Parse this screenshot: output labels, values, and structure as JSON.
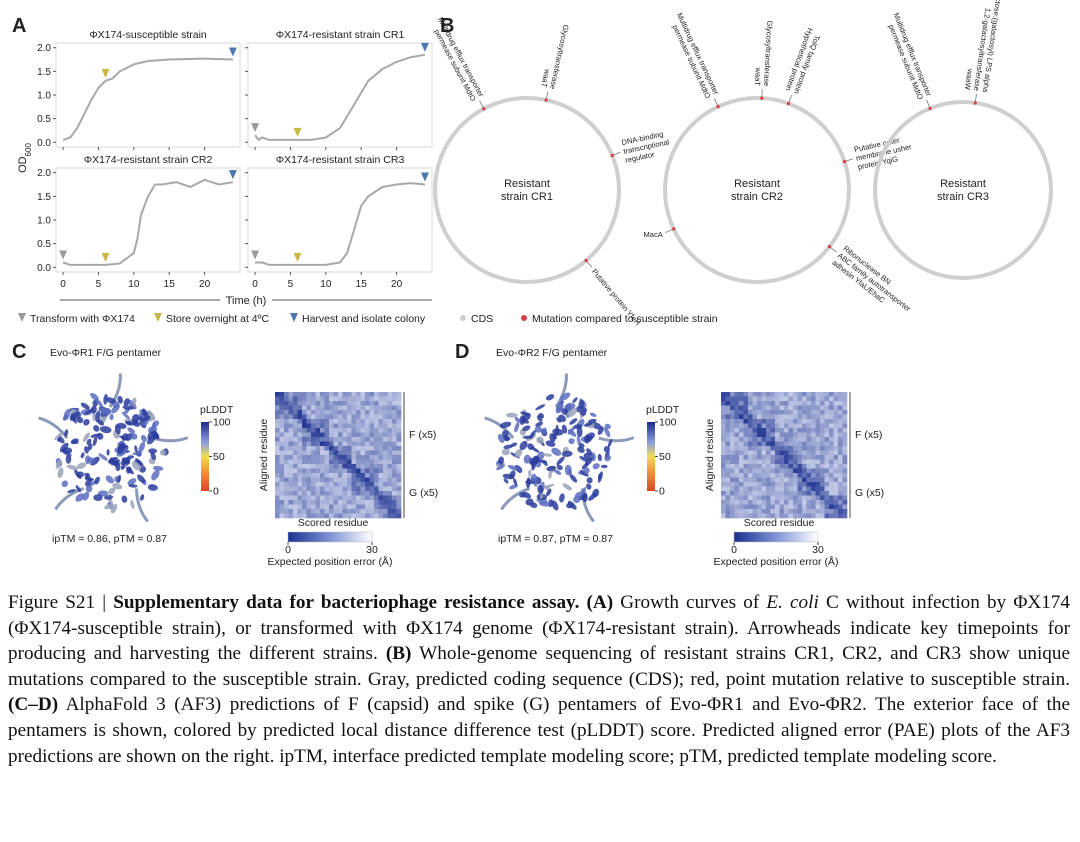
{
  "panel_labels": [
    "A",
    "B",
    "C",
    "D"
  ],
  "chart_data": [
    {
      "type": "line",
      "title": "ΦX174-susceptible strain",
      "color": "#a8a8a8",
      "x": [
        0,
        1,
        2,
        3,
        4,
        5,
        6,
        7,
        8,
        10,
        12,
        15,
        20,
        24
      ],
      "values": [
        0.05,
        0.1,
        0.3,
        0.6,
        0.9,
        1.15,
        1.3,
        1.35,
        1.5,
        1.65,
        1.72,
        1.75,
        1.77,
        1.75
      ],
      "xlim": [
        -1,
        25
      ],
      "ylim": [
        -0.1,
        2.1
      ],
      "xticks": [
        0,
        5,
        10,
        15,
        20
      ],
      "yticks": [
        {
          "value": 0,
          "label": "0.0"
        },
        0.5,
        {
          "value": 1,
          "label": "1.0"
        },
        1.5,
        {
          "value": 2,
          "label": "2.0"
        }
      ],
      "arrowheads": [
        {
          "x": 6,
          "y": 1.3,
          "color": "#c8b84a"
        },
        {
          "x": 24,
          "y": 1.75,
          "color": "#4a78b0"
        }
      ]
    },
    {
      "type": "line",
      "title": "ΦX174-resistant strain CR1",
      "color": "#a8a8a8",
      "x": [
        0,
        0.5,
        1,
        2,
        4,
        6,
        8,
        10,
        12,
        14,
        16,
        18,
        20,
        22,
        24
      ],
      "values": [
        0.15,
        0.05,
        0.1,
        0.05,
        0.05,
        0.05,
        0.05,
        0.1,
        0.3,
        0.8,
        1.3,
        1.55,
        1.7,
        1.8,
        1.85
      ],
      "xlim": [
        -1,
        25
      ],
      "ylim": [
        -0.1,
        2.1
      ],
      "xticks": [
        0,
        5,
        10,
        15,
        20
      ],
      "yticks": [
        {
          "value": 0,
          "label": "0.0"
        },
        0.5,
        {
          "value": 1,
          "label": "1.0"
        },
        1.5,
        {
          "value": 2,
          "label": "2.0"
        }
      ],
      "arrowheads": [
        {
          "x": 0,
          "y": 0.15,
          "color": "#9a9a9a"
        },
        {
          "x": 6,
          "y": 0.05,
          "color": "#c8b84a"
        },
        {
          "x": 24,
          "y": 1.85,
          "color": "#4a78b0"
        }
      ]
    },
    {
      "type": "line",
      "title": "ΦX174-resistant strain CR2",
      "color": "#a8a8a8",
      "x": [
        0,
        1,
        2,
        4,
        6,
        8,
        10,
        10.5,
        11,
        12,
        13,
        14,
        16,
        18,
        20,
        22,
        24
      ],
      "values": [
        0.1,
        0.05,
        0.05,
        0.05,
        0.05,
        0.08,
        0.3,
        0.6,
        1.1,
        1.5,
        1.75,
        1.75,
        1.8,
        1.7,
        1.85,
        1.75,
        1.8
      ],
      "xlim": [
        -1,
        25
      ],
      "ylim": [
        -0.1,
        2.1
      ],
      "xticks": [
        0,
        5,
        10,
        15,
        20
      ],
      "yticks": [
        {
          "value": 0,
          "label": "0.0"
        },
        0.5,
        {
          "value": 1,
          "label": "1.0"
        },
        1.5,
        {
          "value": 2,
          "label": "2.0"
        }
      ],
      "arrowheads": [
        {
          "x": 0,
          "y": 0.1,
          "color": "#9a9a9a"
        },
        {
          "x": 6,
          "y": 0.05,
          "color": "#c8b84a"
        },
        {
          "x": 24,
          "y": 1.8,
          "color": "#4a78b0"
        }
      ]
    },
    {
      "type": "line",
      "title": "ΦX174-resistant strain CR3",
      "color": "#a8a8a8",
      "x": [
        0,
        1,
        2,
        4,
        6,
        8,
        10,
        12,
        13,
        14,
        15,
        16,
        18,
        20,
        22,
        24
      ],
      "values": [
        0.1,
        0.1,
        0.05,
        0.05,
        0.05,
        0.05,
        0.05,
        0.1,
        0.3,
        0.8,
        1.3,
        1.5,
        1.7,
        1.75,
        1.78,
        1.75
      ],
      "xlim": [
        -1,
        25
      ],
      "ylim": [
        -0.1,
        2.1
      ],
      "xticks": [
        0,
        5,
        10,
        15,
        20
      ],
      "yticks": [
        {
          "value": 0,
          "label": "0.0"
        },
        0.5,
        {
          "value": 1,
          "label": "1.0"
        },
        1.5,
        {
          "value": 2,
          "label": "2.0"
        }
      ],
      "arrowheads": [
        {
          "x": 0,
          "y": 0.1,
          "color": "#9a9a9a"
        },
        {
          "x": 6,
          "y": 0.05,
          "color": "#c8b84a"
        },
        {
          "x": 24,
          "y": 1.75,
          "color": "#4a78b0"
        }
      ]
    }
  ],
  "panel_a": {
    "xlabel": "Time (h)",
    "ylabel": "OD",
    "ylabel_sub": "600"
  },
  "legend": [
    {
      "label": "Transform with ΦX174",
      "color": "#9a9a9a",
      "marker": "arrow"
    },
    {
      "label": "Store overnight at 4ºC",
      "color": "#c8b84a",
      "marker": "arrow"
    },
    {
      "label": "Harvest and isolate colony",
      "color": "#4a78b0",
      "marker": "arrow"
    },
    {
      "label": "CDS",
      "color": "#cfcfcf",
      "marker": "dot"
    },
    {
      "label": "Mutation compared to susceptible strain",
      "color": "#d9404a",
      "marker": "dot"
    }
  ],
  "panel_b": {
    "genomes": [
      {
        "name_lines": [
          "Resistant",
          "strain CR1"
        ],
        "genes": [
          {
            "lines": [
              "Multidrug efflux transporter",
              "permease subunit MdtO"
            ]
          },
          {
            "lines": [
              "Glycosyltransferase",
              "waaT"
            ]
          },
          {
            "lines": [
              "DNA-binding",
              "transcriptional",
              "regulator"
            ]
          },
          {
            "lines": [
              "Putative protein YfeH"
            ]
          }
        ]
      },
      {
        "name_lines": [
          "Resistant",
          "strain CR2"
        ],
        "genes": [
          {
            "lines": [
              "Multidrug efflux transporter",
              "permease subunit MdtO"
            ]
          },
          {
            "lines": [
              "Glycosyltransferase",
              "waaT"
            ]
          },
          {
            "lines": [
              "TolQ family protein",
              "Hypothetical protein"
            ]
          },
          {
            "lines": [
              "Putative outer",
              "membrane usher",
              "protein YqiG"
            ]
          },
          {
            "lines": [
              "Ribonuclease BN",
              "ABC family autotransporter",
              "adhesin YfaL/EhaC"
            ]
          },
          {
            "lines": [
              "MacA"
            ]
          }
        ]
      },
      {
        "name_lines": [
          "Resistant",
          "strain CR3"
        ],
        "genes": [
          {
            "lines": [
              "Multidrug efflux transporter",
              "permease subunit MdtO"
            ]
          },
          {
            "lines": [
              "UDP-galactose:(galactosyl) LPS alpha",
              "1,2-galactosyltransferase",
              "waaW"
            ]
          }
        ]
      }
    ]
  },
  "structures": [
    {
      "title": "Evo-ΦR1 F/G pentamer",
      "scores": "ipTM = 0.86, pTM = 0.87",
      "plddt_label": "pLDDT",
      "plddt_ticks": [
        100,
        50,
        0
      ],
      "pae_ylabel": "Aligned residue",
      "pae_xlabel": "Scored residue",
      "pae_groups": [
        "F (x5)",
        "G (x5)"
      ],
      "pae_ticks": [
        0,
        30
      ],
      "pae_colorbar_label": "Expected position error (Å)"
    },
    {
      "title": "Evo-ΦR2 F/G pentamer",
      "scores": "ipTM = 0.87, pTM = 0.87",
      "plddt_label": "pLDDT",
      "plddt_ticks": [
        100,
        50,
        0
      ],
      "pae_ylabel": "Aligned residue",
      "pae_xlabel": "Scored residue",
      "pae_groups": [
        "F (x5)",
        "G (x5)"
      ],
      "pae_ticks": [
        0,
        30
      ],
      "pae_colorbar_label": "Expected position error (Å)"
    }
  ],
  "caption": {
    "parts": [
      "Figure S21 | ",
      "Supplementary data for bacteriophage resistance assay.",
      " (A)",
      " Growth curves of ",
      "E. coli",
      " C without infection by ΦX174 (ΦX174-susceptible strain), or transformed with ΦX174 genome (ΦX174-resistant strain). Arrowheads indicate key timepoints for producing and harvesting the different strains. ",
      "(B)",
      " Whole-genome sequencing of resistant strains CR1, CR2, and CR3 show unique mutations compared to the susceptible strain. Gray, predicted coding sequence (CDS); red, point mutation relative to susceptible strain. ",
      "(C–D)",
      " AlphaFold 3 (AF3) predictions of F (capsid) and spike (G) pentamers of Evo-ΦR1 and Evo-ΦR2. The exterior face of the pentamers is shown, colored by predicted local distance difference test (pLDDT) score. Predicted aligned error (PAE) plots of the AF3 predictions are shown on the right. ipTM, interface predicted template modeling score; pTM, predicted template modeling score."
    ]
  }
}
